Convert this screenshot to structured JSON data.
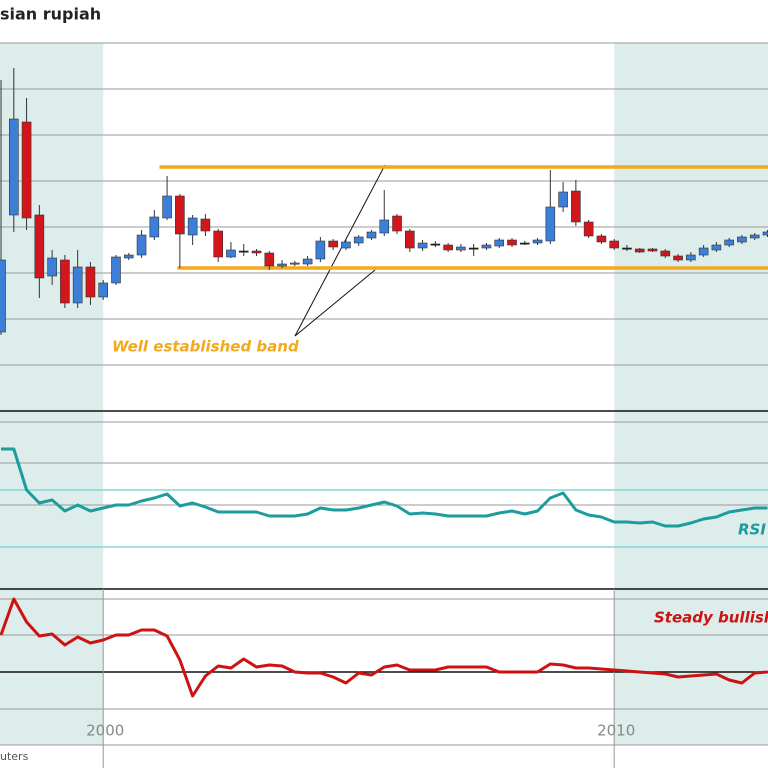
{
  "chart_data": [
    {
      "type": "candlestick",
      "title": "sian rupiah",
      "source": "uters",
      "annotation": "Well established band",
      "x": [
        1998,
        1998.25,
        1998.5,
        1998.75,
        1999,
        1999.25,
        1999.5,
        1999.75,
        2000,
        2000.25,
        2000.5,
        2000.75,
        2001,
        2001.25,
        2001.5,
        2001.75,
        2002,
        2002.25,
        2002.5,
        2002.75,
        2003,
        2003.25,
        2003.5,
        2003.75,
        2004,
        2004.25,
        2004.5,
        2004.75,
        2005,
        2005.25,
        2005.5,
        2005.75,
        2006,
        2006.25,
        2006.5,
        2006.75,
        2007,
        2007.25,
        2007.5,
        2007.75,
        2008,
        2008.25,
        2008.5,
        2008.75,
        2009,
        2009.25,
        2009.5,
        2009.75,
        2010,
        2010.25,
        2010.5,
        2010.75,
        2011,
        2011.25,
        2011.5,
        2011.75,
        2012,
        2012.25,
        2012.5,
        2012.75,
        2013
      ],
      "open": [
        79,
        196,
        289,
        196,
        135,
        151,
        108,
        144,
        114,
        128,
        153,
        156,
        174,
        193,
        215,
        176,
        192,
        180,
        154,
        160,
        160,
        158,
        145,
        147,
        147,
        152,
        170,
        163,
        168,
        173,
        178,
        195,
        180,
        163,
        167,
        166,
        161,
        163,
        163,
        165,
        171,
        168,
        168,
        170,
        204,
        220,
        189,
        175,
        170,
        163,
        162,
        162,
        160,
        155,
        151,
        156,
        161,
        166,
        169,
        173,
        176
      ],
      "high": [
        331,
        343,
        313,
        206,
        161,
        156,
        161,
        149,
        131,
        156,
        158,
        181,
        201,
        235,
        217,
        196,
        197,
        182,
        169,
        167,
        162,
        160,
        151,
        150,
        155,
        174,
        172,
        172,
        176,
        181,
        221,
        197,
        182,
        171,
        170,
        168,
        167,
        167,
        168,
        173,
        173,
        170,
        173,
        241,
        229,
        231,
        191,
        177,
        172,
        166,
        163,
        163,
        162,
        157,
        159,
        166,
        169,
        173,
        176,
        178,
        181
      ],
      "low": [
        76,
        179,
        181,
        113,
        126,
        103,
        103,
        106,
        111,
        126,
        151,
        153,
        171,
        191,
        143,
        166,
        175,
        149,
        153,
        155,
        155,
        141,
        143,
        145,
        145,
        149,
        161,
        161,
        165,
        171,
        175,
        177,
        159,
        160,
        164,
        159,
        159,
        155,
        161,
        163,
        164,
        166,
        166,
        167,
        199,
        185,
        173,
        167,
        161,
        160,
        158,
        159,
        153,
        149,
        149,
        154,
        159,
        164,
        167,
        171,
        174
      ],
      "close": [
        151,
        292,
        193,
        133,
        153,
        108,
        144,
        114,
        128,
        154,
        156,
        176,
        194,
        215,
        177,
        193,
        180,
        154,
        161,
        160,
        158,
        145,
        147,
        148,
        152,
        170,
        164,
        169,
        174,
        179,
        191,
        180,
        163,
        168,
        167,
        161,
        164,
        163,
        166,
        171,
        166,
        168,
        171,
        204,
        219,
        189,
        175,
        169,
        163,
        163,
        159,
        160,
        155,
        151,
        156,
        163,
        166,
        171,
        174,
        176,
        179
      ],
      "up_color": "#3d7fd8",
      "down_color": "#d2161b",
      "doji_color": "#222222",
      "xlim": [
        1997.98,
        2013.01
      ],
      "xticks": [
        2000,
        2010
      ],
      "ylim": [
        0,
        368
      ],
      "shaded": [
        [
          1997.98,
          2000
        ],
        [
          2010,
          2013.01
        ]
      ],
      "band": {
        "upper": 244,
        "lower": 143,
        "x_start": [
          2001.1,
          2001.45
        ],
        "color": "#f2a91c"
      }
    },
    {
      "type": "line",
      "annotation": "RSI c",
      "color": "#1c9c9c",
      "x": [
        1998,
        1998.25,
        1998.5,
        1998.75,
        1999,
        1999.25,
        1999.5,
        1999.75,
        2000,
        2000.25,
        2000.5,
        2000.75,
        2001,
        2001.25,
        2001.5,
        2001.75,
        2002,
        2002.25,
        2002.5,
        2002.75,
        2003,
        2003.25,
        2003.5,
        2003.75,
        2004,
        2004.25,
        2004.5,
        2004.75,
        2005,
        2005.25,
        2005.5,
        2005.75,
        2006,
        2006.25,
        2006.5,
        2006.75,
        2007,
        2007.25,
        2007.5,
        2007.75,
        2008,
        2008.25,
        2008.5,
        2008.75,
        2009,
        2009.25,
        2009.5,
        2009.75,
        2010,
        2010.25,
        2010.5,
        2010.75,
        2011,
        2011.25,
        2011.5,
        2011.75,
        2012,
        2012.25,
        2012.5,
        2012.75,
        2013
      ],
      "values": [
        140,
        140,
        99,
        86,
        89,
        78,
        84,
        78,
        81,
        84,
        84,
        88,
        91,
        95,
        83,
        86,
        82,
        77,
        77,
        77,
        77,
        73,
        73,
        73,
        75,
        81,
        79,
        79,
        81,
        84,
        87,
        83,
        75,
        76,
        75,
        73,
        73,
        73,
        73,
        76,
        78,
        75,
        78,
        91,
        96,
        79,
        74,
        72,
        67,
        67,
        66,
        67,
        63,
        63,
        66,
        70,
        72,
        77,
        79,
        81,
        81
      ],
      "ylim": [
        0,
        167
      ]
    },
    {
      "type": "line",
      "annotation": "Steady bullish",
      "color": "#cc1212",
      "x": [
        1998,
        1998.25,
        1998.5,
        1998.75,
        1999,
        1999.25,
        1999.5,
        1999.75,
        2000,
        2000.25,
        2000.5,
        2000.75,
        2001,
        2001.25,
        2001.5,
        2001.75,
        2002,
        2002.25,
        2002.5,
        2002.75,
        2003,
        2003.25,
        2003.5,
        2003.75,
        2004,
        2004.25,
        2004.5,
        2004.75,
        2005,
        2005.25,
        2005.5,
        2005.75,
        2006,
        2006.25,
        2006.5,
        2006.75,
        2007,
        2007.25,
        2007.5,
        2007.75,
        2008,
        2008.25,
        2008.5,
        2008.75,
        2009,
        2009.25,
        2009.5,
        2009.75,
        2010,
        2010.25,
        2010.5,
        2010.75,
        2011,
        2011.25,
        2011.5,
        2011.75,
        2012,
        2012.25,
        2012.5,
        2012.75,
        2013
      ],
      "values": [
        37,
        73,
        50,
        36,
        38,
        27,
        35,
        29,
        32,
        37,
        37,
        42,
        42,
        36,
        12,
        -24,
        -4,
        6,
        4,
        13,
        5,
        7,
        6,
        0,
        -1,
        -1,
        -5,
        -11,
        -1,
        -3,
        5,
        7,
        2,
        2,
        2,
        5,
        5,
        5,
        5,
        0,
        0,
        0,
        0,
        8,
        7,
        4,
        4,
        3,
        2,
        1,
        0,
        -1,
        -2,
        -5,
        -4,
        -3,
        -2,
        -8,
        -11,
        -1,
        0
      ],
      "ylim": [
        -96,
        83
      ]
    }
  ]
}
